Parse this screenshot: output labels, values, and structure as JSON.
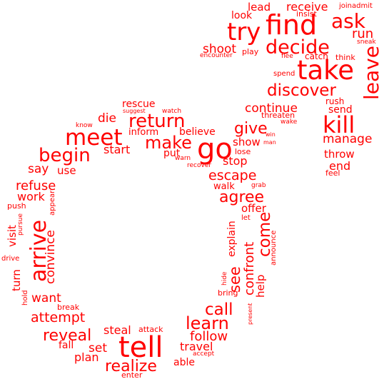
{
  "color": "#ff0000",
  "words": [
    {
      "id": "find",
      "text": "find"
    },
    {
      "id": "ask",
      "text": "ask"
    },
    {
      "id": "try",
      "text": "try"
    },
    {
      "id": "lead",
      "text": "lead"
    },
    {
      "id": "receive",
      "text": "receive"
    },
    {
      "id": "joinadmit",
      "text": "joinadmit"
    },
    {
      "id": "look",
      "text": "look"
    },
    {
      "id": "insist",
      "text": "insist"
    },
    {
      "id": "run",
      "text": "run"
    },
    {
      "id": "sneak",
      "text": "sneak"
    },
    {
      "id": "decide",
      "text": "decide"
    },
    {
      "id": "shoot",
      "text": "shoot"
    },
    {
      "id": "play",
      "text": "play"
    },
    {
      "id": "encounter",
      "text": "encounter"
    },
    {
      "id": "flee",
      "text": "flee"
    },
    {
      "id": "catch",
      "text": "catch"
    },
    {
      "id": "think",
      "text": "think"
    },
    {
      "id": "take",
      "text": "take"
    },
    {
      "id": "leave",
      "text": "leave"
    },
    {
      "id": "spend",
      "text": "spend"
    },
    {
      "id": "discover",
      "text": "discover"
    },
    {
      "id": "rescue",
      "text": "rescue"
    },
    {
      "id": "suggest",
      "text": "suggest"
    },
    {
      "id": "watch",
      "text": "watch"
    },
    {
      "id": "continue",
      "text": "continue"
    },
    {
      "id": "rush",
      "text": "rush"
    },
    {
      "id": "send",
      "text": "send"
    },
    {
      "id": "kill",
      "text": "kill"
    },
    {
      "id": "threaten",
      "text": "threaten"
    },
    {
      "id": "wake",
      "text": "wake"
    },
    {
      "id": "die",
      "text": "die"
    },
    {
      "id": "return",
      "text": "return"
    },
    {
      "id": "know",
      "text": "know"
    },
    {
      "id": "meet",
      "text": "meet"
    },
    {
      "id": "give",
      "text": "give"
    },
    {
      "id": "win",
      "text": "win"
    },
    {
      "id": "manage",
      "text": "manage"
    },
    {
      "id": "inform",
      "text": "inform"
    },
    {
      "id": "believe",
      "text": "believe"
    },
    {
      "id": "make",
      "text": "make"
    },
    {
      "id": "go",
      "text": "go"
    },
    {
      "id": "show",
      "text": "show"
    },
    {
      "id": "man",
      "text": "man"
    },
    {
      "id": "start",
      "text": "start"
    },
    {
      "id": "begin",
      "text": "begin"
    },
    {
      "id": "put",
      "text": "put"
    },
    {
      "id": "lose",
      "text": "lose"
    },
    {
      "id": "throw",
      "text": "throw"
    },
    {
      "id": "warn",
      "text": "warn"
    },
    {
      "id": "stop",
      "text": "stop"
    },
    {
      "id": "end",
      "text": "end"
    },
    {
      "id": "recover",
      "text": "recover"
    },
    {
      "id": "say",
      "text": "say"
    },
    {
      "id": "use",
      "text": "use"
    },
    {
      "id": "feel",
      "text": "feel"
    },
    {
      "id": "escape",
      "text": "escape"
    },
    {
      "id": "refuse",
      "text": "refuse"
    },
    {
      "id": "grab",
      "text": "grab"
    },
    {
      "id": "walk",
      "text": "walk"
    },
    {
      "id": "agree",
      "text": "agree"
    },
    {
      "id": "work",
      "text": "work"
    },
    {
      "id": "appear",
      "text": "appear"
    },
    {
      "id": "push",
      "text": "push"
    },
    {
      "id": "offer",
      "text": "offer"
    },
    {
      "id": "arrive",
      "text": "arrive"
    },
    {
      "id": "visit",
      "text": "visit"
    },
    {
      "id": "pursue",
      "text": "pursue"
    },
    {
      "id": "let",
      "text": "let"
    },
    {
      "id": "see",
      "text": "see"
    },
    {
      "id": "explain",
      "text": "explain"
    },
    {
      "id": "come",
      "text": "come"
    },
    {
      "id": "convince",
      "text": "convince"
    },
    {
      "id": "confront",
      "text": "confront"
    },
    {
      "id": "announce",
      "text": "announce"
    },
    {
      "id": "drive",
      "text": "drive"
    },
    {
      "id": "turn",
      "text": "turn"
    },
    {
      "id": "hide",
      "text": "hide"
    },
    {
      "id": "help",
      "text": "help"
    },
    {
      "id": "hold",
      "text": "hold"
    },
    {
      "id": "want",
      "text": "want"
    },
    {
      "id": "bring",
      "text": "bring"
    },
    {
      "id": "break",
      "text": "break"
    },
    {
      "id": "call",
      "text": "call"
    },
    {
      "id": "present",
      "text": "present"
    },
    {
      "id": "attempt",
      "text": "attempt"
    },
    {
      "id": "learn",
      "text": "learn"
    },
    {
      "id": "steal",
      "text": "steal"
    },
    {
      "id": "attack",
      "text": "attack"
    },
    {
      "id": "reveal",
      "text": "reveal"
    },
    {
      "id": "follow",
      "text": "follow"
    },
    {
      "id": "tell",
      "text": "tell"
    },
    {
      "id": "fall",
      "text": "fall"
    },
    {
      "id": "set",
      "text": "set"
    },
    {
      "id": "travel",
      "text": "travel"
    },
    {
      "id": "accept",
      "text": "accept"
    },
    {
      "id": "plan",
      "text": "plan"
    },
    {
      "id": "realize",
      "text": "realize"
    },
    {
      "id": "able",
      "text": "able"
    },
    {
      "id": "enter",
      "text": "enter"
    }
  ]
}
